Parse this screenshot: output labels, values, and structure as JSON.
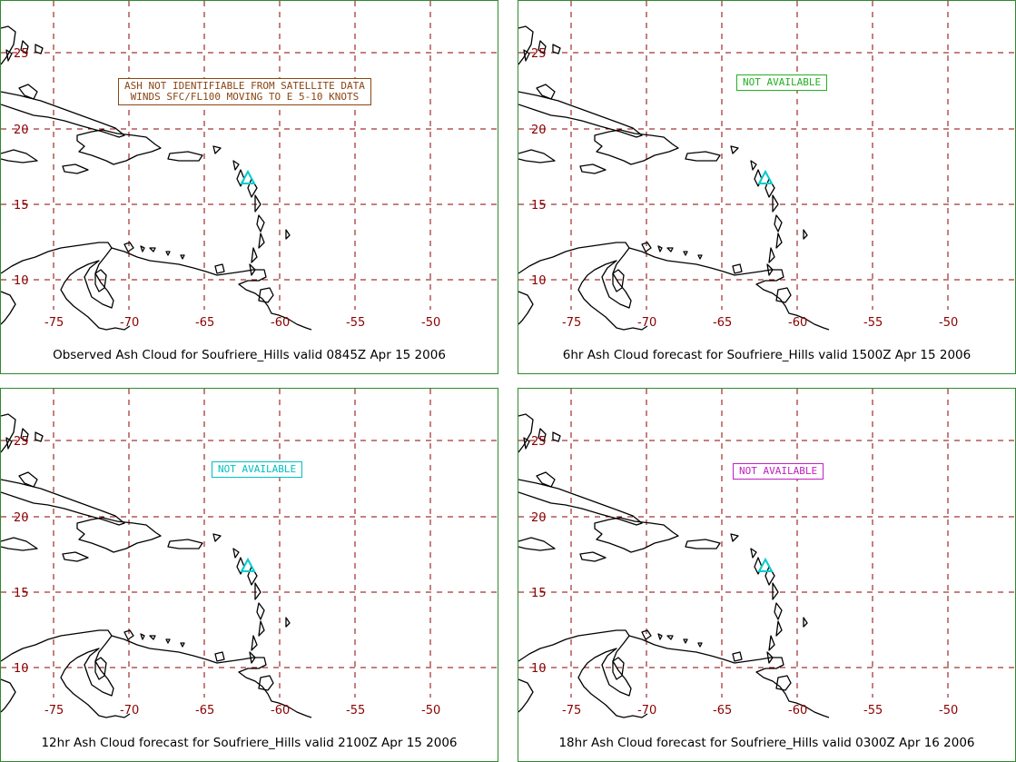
{
  "colors": {
    "border": "#2e8b2e",
    "grid": "#8b0000",
    "tick_labels": "#8b0000",
    "coastline": "#000000",
    "volcano_marker": "#00cccc"
  },
  "map": {
    "lat_labels": [
      "25",
      "20",
      "15",
      "10"
    ],
    "lon_labels": [
      "-75",
      "-70",
      "-65",
      "-60",
      "-55",
      "-50"
    ],
    "volcano_marker_icon": "triangle-icon"
  },
  "panels": [
    {
      "caption": "Observed Ash Cloud for Soufriere_Hills valid 0845Z Apr 15 2006",
      "note_lines": [
        "ASH NOT IDENTIFIABLE FROM SATELLITE DATA",
        "WINDS SFC/FL100 MOVING TO E 5-10 KNOTS"
      ],
      "note_color": "#8b4513"
    },
    {
      "caption": "6hr Ash Cloud forecast for Soufriere_Hills valid 1500Z Apr 15 2006",
      "note_lines": [
        "NOT AVAILABLE"
      ],
      "note_color": "#22b022"
    },
    {
      "caption": "12hr Ash Cloud forecast for Soufriere_Hills valid 2100Z Apr 15 2006",
      "note_lines": [
        "NOT AVAILABLE"
      ],
      "note_color": "#00c0c0"
    },
    {
      "caption": "18hr Ash Cloud forecast for Soufriere_Hills valid 0300Z Apr 16 2006",
      "note_lines": [
        "NOT AVAILABLE"
      ],
      "note_color": "#c020c0"
    }
  ]
}
